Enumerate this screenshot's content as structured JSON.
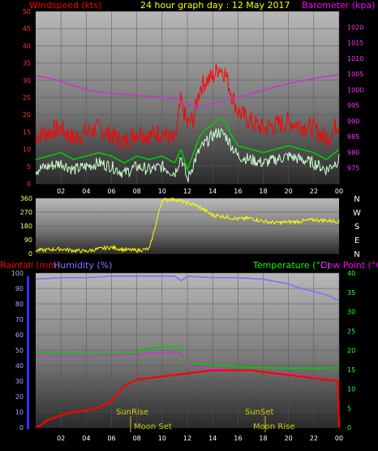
{
  "header": {
    "left_title": "Windspeed (kts)",
    "center_title": "24 hour graph day : 12 May 2017",
    "right_title": "Barometer (kpa)"
  },
  "x_ticks": [
    "02",
    "04",
    "06",
    "08",
    "10",
    "12",
    "14",
    "16",
    "18",
    "20",
    "22",
    "00"
  ],
  "compass": [
    "N",
    "W",
    "S",
    "E",
    "N"
  ],
  "colors": {
    "wind_gust": "#ff0000",
    "wind_avg": "#00cc00",
    "wind_speed": "#ccffcc",
    "barometer": "#cc33cc",
    "direction": "#ffff00",
    "rain": "#ff0000",
    "humidity": "#7777ff",
    "temperature": "#00cc00",
    "dewpoint": "#cc33cc",
    "title_red": "#ff0000",
    "title_yellow": "#ffff00",
    "title_magenta": "#ff00ff",
    "label_green": "#00ff00"
  },
  "bottom_labels": {
    "rainfall": "Rainfall (mm)",
    "humidity": "Humidity (%)",
    "temperature": "Temperature (°C)",
    "dewpoint": "Dew Point (°C)",
    "sunrise": "SunRise",
    "sunset": "SunSet",
    "moonset": "Moon Set",
    "moonrise": "Moon Rise"
  },
  "chart_data": [
    {
      "type": "line",
      "title": "24 hour graph day : 12 May 2017",
      "x_unit": "hour",
      "x_ticks": [
        "02",
        "04",
        "06",
        "08",
        "10",
        "12",
        "14",
        "16",
        "18",
        "20",
        "22",
        "00"
      ],
      "left_axis": {
        "label": "Windspeed (kts)",
        "ylim": [
          0,
          50
        ],
        "ticks": [
          0,
          5,
          10,
          15,
          20,
          25,
          30,
          35,
          40,
          45,
          50
        ]
      },
      "right_axis": {
        "label": "Barometer (kpa)",
        "ylim": [
          970,
          1025
        ],
        "ticks": [
          975,
          980,
          985,
          990,
          995,
          1000,
          1005,
          1010,
          1015,
          1020
        ]
      },
      "grid": true,
      "series": [
        {
          "axis": "right",
          "x": [
            0,
            1,
            2,
            3,
            4,
            5,
            6,
            7,
            8,
            9,
            10,
            11,
            11.5,
            12,
            12.5,
            13,
            14,
            15,
            16,
            17,
            18,
            19,
            20,
            21,
            22,
            23,
            24
          ],
          "values": [
            1004.5,
            1003.8,
            1002.6,
            1001.3,
            1000,
            999.2,
            998.8,
            998.5,
            998.2,
            997.9,
            997.6,
            997.1,
            996.5,
            995.3,
            994.6,
            994.8,
            995.6,
            996.6,
            997.6,
            998.7,
            999.8,
            1000.9,
            1001.9,
            1002.8,
            1003.6,
            1004.2,
            1004.8
          ]
        },
        {
          "axis": "left",
          "x": [
            0,
            1,
            2,
            3,
            4,
            5,
            6,
            7,
            8,
            9,
            10,
            11,
            11.5,
            12,
            12.5,
            13,
            13.5,
            14,
            14.5,
            15,
            15.5,
            16,
            17,
            18,
            19,
            20,
            21,
            22,
            23,
            24
          ],
          "values": [
            14,
            15,
            16,
            13,
            15,
            16,
            14,
            12,
            15,
            14,
            15,
            12,
            24,
            17,
            19,
            28,
            30,
            31,
            34,
            32,
            26,
            21,
            18,
            16,
            17,
            18,
            17,
            16,
            13,
            18
          ]
        },
        {
          "axis": "left",
          "x": [
            0,
            1,
            2,
            3,
            4,
            5,
            6,
            7,
            8,
            9,
            10,
            11,
            11.5,
            12,
            12.5,
            13,
            13.5,
            14,
            14.5,
            15,
            15.5,
            16,
            17,
            18,
            19,
            20,
            21,
            22,
            23,
            24
          ],
          "values": [
            7,
            8,
            9,
            7,
            8,
            9,
            8,
            6,
            8,
            7,
            8,
            6,
            10,
            4,
            9,
            14,
            16,
            17,
            19,
            18,
            14,
            11,
            10,
            9,
            10,
            11,
            10,
            9,
            7,
            10
          ]
        },
        {
          "axis": "left",
          "x": [
            0,
            1,
            2,
            3,
            4,
            5,
            6,
            7,
            8,
            9,
            10,
            11,
            11.5,
            12,
            12.5,
            13,
            13.5,
            14,
            14.5,
            15,
            15.5,
            16,
            17,
            18,
            19,
            20,
            21,
            22,
            23,
            24
          ],
          "values": [
            4,
            5,
            6,
            4,
            5,
            6,
            5,
            3,
            5,
            4,
            5,
            3,
            8,
            1,
            6,
            10,
            12,
            14,
            15,
            14,
            11,
            8,
            7,
            6,
            7,
            8,
            7,
            6,
            4,
            7
          ]
        }
      ]
    },
    {
      "type": "scatter",
      "x_unit": "hour",
      "yaxis": {
        "ylim": [
          0,
          360
        ],
        "ticks": [
          0,
          90,
          180,
          270,
          360
        ]
      },
      "grid": true,
      "series": [
        {
          "x": [
            0,
            1,
            2,
            3,
            4,
            5,
            6,
            7,
            8,
            9,
            10,
            11,
            11.5,
            12,
            12.5,
            13,
            14,
            15,
            16,
            17,
            18,
            19,
            20,
            21,
            22,
            23,
            24
          ],
          "values": [
            20,
            25,
            30,
            20,
            15,
            30,
            40,
            25,
            20,
            30,
            350,
            355,
            340,
            330,
            320,
            300,
            250,
            240,
            225,
            230,
            210,
            200,
            205,
            210,
            220,
            215,
            210
          ]
        }
      ]
    },
    {
      "type": "line",
      "x_unit": "hour",
      "left_axis": {
        "label": "Rainfall (mm) / Humidity (%)",
        "ylim": [
          0,
          100
        ],
        "ticks": [
          0,
          10,
          20,
          30,
          40,
          50,
          60,
          70,
          80,
          90,
          100
        ]
      },
      "right_axis": {
        "label": "Temperature (°C) / Dew Point (°C)",
        "ylim": [
          0,
          40
        ],
        "ticks": [
          0,
          5,
          10,
          15,
          20,
          25,
          30,
          35,
          40
        ]
      },
      "grid": true,
      "annotations": [
        "SunRise",
        "SunSet",
        "Moon Set",
        "Moon Rise"
      ],
      "series": [
        {
          "name": "Humidity (%)",
          "axis": "left",
          "x": [
            0,
            2,
            4,
            6,
            8,
            10,
            11,
            11.5,
            12,
            14,
            16,
            18,
            20,
            21,
            22,
            23,
            24
          ],
          "values": [
            96,
            97,
            97,
            98,
            98,
            98,
            98,
            95,
            98,
            97,
            97,
            96,
            93,
            90,
            88,
            86,
            82
          ]
        },
        {
          "name": "Temperature (°C)",
          "axis": "right",
          "x": [
            0,
            2,
            4,
            6,
            8,
            9,
            10,
            11,
            11.5,
            11.6,
            12,
            14,
            16,
            18,
            20,
            22,
            24
          ],
          "values": [
            19.3,
            19.2,
            19,
            19,
            19.4,
            20.6,
            20.8,
            21,
            20.8,
            17.2,
            16.5,
            16.2,
            15.8,
            15.5,
            15.3,
            15.3,
            15.5
          ]
        },
        {
          "name": "Dew Point (°C)",
          "axis": "right",
          "x": [
            0,
            2,
            4,
            6,
            8,
            10,
            11,
            11.5,
            12,
            14,
            16,
            18,
            20,
            22,
            24
          ],
          "values": [
            18.7,
            18.5,
            18.4,
            18.7,
            19,
            19.4,
            19.6,
            19.2,
            15.8,
            15.3,
            14.8,
            14.5,
            13.9,
            13,
            12
          ]
        },
        {
          "name": "Rainfall (mm)",
          "axis": "left",
          "x": [
            0,
            0.5,
            1,
            2,
            3,
            4,
            5,
            6,
            7,
            8,
            9,
            10,
            11,
            12,
            13,
            14,
            15,
            16,
            17,
            18,
            19,
            20,
            21,
            22,
            23,
            23.9,
            24
          ],
          "values": [
            0,
            2,
            5,
            8,
            10,
            11,
            13,
            17,
            27,
            31,
            32,
            33,
            34,
            35,
            36,
            37,
            37,
            37,
            37,
            36,
            35,
            34,
            33,
            32,
            31,
            30,
            0
          ]
        }
      ]
    }
  ]
}
